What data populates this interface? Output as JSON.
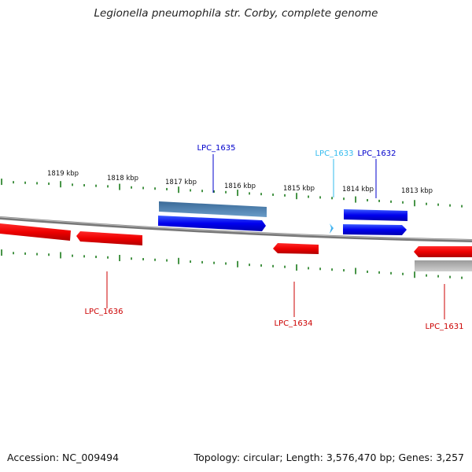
{
  "title": "Legionella pneumophila str. Corby, complete genome",
  "footer": {
    "accession": "Accession: NC_009494",
    "summary": "Topology: circular; Length: 3,576,470 bp; Genes: 3,257"
  },
  "ticks": [
    "1819 kbp",
    "1818 kbp",
    "1817 kbp",
    "1816 kbp",
    "1815 kbp",
    "1814 kbp",
    "1813 kbp"
  ],
  "genes": [
    {
      "label": "LPC_1635",
      "color": "#0000cc",
      "strand": "+"
    },
    {
      "label": "LPC_1633",
      "color": "#33bbee",
      "strand": "+"
    },
    {
      "label": "LPC_1632",
      "color": "#0000cc",
      "strand": "+"
    },
    {
      "label": "LPC_1636",
      "color": "#cc0000",
      "strand": "-"
    },
    {
      "label": "LPC_1634",
      "color": "#cc0000",
      "strand": "-"
    },
    {
      "label": "LPC_1631",
      "color": "#cc0000",
      "strand": "-"
    }
  ],
  "colors": {
    "forward_cds": "#0000ee",
    "reverse_cds": "#ee0000",
    "forward_gene": "#4a7fb0",
    "reverse_gene": "#aaaaaa",
    "tick_marks": "#1a7a1a",
    "backbone": "#888888"
  }
}
